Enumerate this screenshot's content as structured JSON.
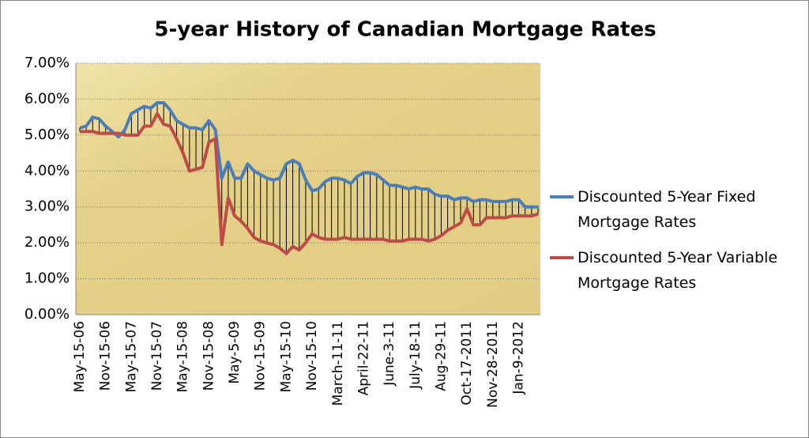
{
  "chart_data": {
    "type": "line",
    "title": "5-year History of Canadian Mortgage Rates",
    "categories": [
      "May-15-06",
      null,
      null,
      null,
      "Nov-15-06",
      null,
      null,
      null,
      "May-15-07",
      null,
      null,
      null,
      "Nov-15-07",
      null,
      null,
      null,
      "May-15-08",
      null,
      null,
      null,
      "Nov-15-08",
      null,
      null,
      null,
      "May-5-09",
      null,
      null,
      null,
      "Nov-15-09",
      null,
      null,
      null,
      "May-15-10",
      null,
      null,
      null,
      "Nov-15-10",
      null,
      null,
      null,
      "March-11-11",
      null,
      null,
      null,
      "April-22-11",
      null,
      null,
      null,
      "June-3-11",
      null,
      null,
      null,
      "July-18-11",
      null,
      null,
      null,
      "Aug-29-11",
      null,
      null,
      null,
      "Oct-17-2011",
      null,
      null,
      null,
      "Nov-28-2011",
      null,
      null,
      null,
      "Jan-9-2012",
      null,
      null,
      null
    ],
    "series": [
      {
        "name": "Discounted 5-Year Fixed Mortgage Rates",
        "color": "#4a7ebb",
        "values": [
          5.2,
          5.25,
          5.5,
          5.45,
          5.25,
          5.1,
          4.95,
          5.15,
          5.6,
          5.7,
          5.8,
          5.75,
          5.9,
          5.9,
          5.7,
          5.4,
          5.3,
          5.2,
          5.2,
          5.15,
          5.4,
          5.15,
          3.8,
          4.25,
          3.8,
          3.8,
          4.2,
          4.0,
          3.9,
          3.8,
          3.75,
          3.8,
          4.2,
          4.3,
          4.2,
          3.75,
          3.45,
          3.5,
          3.7,
          3.8,
          3.8,
          3.75,
          3.65,
          3.85,
          3.95,
          3.95,
          3.9,
          3.75,
          3.6,
          3.6,
          3.55,
          3.5,
          3.55,
          3.5,
          3.5,
          3.35,
          3.3,
          3.3,
          3.2,
          3.25,
          3.25,
          3.15,
          3.2,
          3.2,
          3.15,
          3.15,
          3.15,
          3.2,
          3.2,
          3.0,
          3.0,
          3.0
        ]
      },
      {
        "name": "Discounted 5-Year Variable Mortgage Rates",
        "color": "#be4b48",
        "values": [
          5.1,
          5.1,
          5.1,
          5.05,
          5.05,
          5.05,
          5.05,
          5.0,
          5.0,
          5.0,
          5.25,
          5.25,
          5.6,
          5.3,
          5.25,
          4.9,
          4.5,
          4.0,
          4.05,
          4.1,
          4.8,
          4.9,
          1.95,
          3.25,
          2.75,
          2.6,
          2.4,
          2.15,
          2.05,
          2.0,
          1.95,
          1.85,
          1.7,
          1.9,
          1.8,
          2.0,
          2.25,
          2.15,
          2.1,
          2.1,
          2.1,
          2.15,
          2.1,
          2.1,
          2.1,
          2.1,
          2.1,
          2.1,
          2.05,
          2.05,
          2.05,
          2.1,
          2.1,
          2.1,
          2.05,
          2.1,
          2.2,
          2.35,
          2.45,
          2.55,
          2.95,
          2.5,
          2.5,
          2.7,
          2.7,
          2.7,
          2.7,
          2.75,
          2.75,
          2.75,
          2.75,
          2.8
        ]
      }
    ],
    "ylim": [
      0,
      7
    ],
    "yticks": [
      {
        "value": 0,
        "label": "0.00%"
      },
      {
        "value": 1,
        "label": "1.00%"
      },
      {
        "value": 2,
        "label": "2.00%"
      },
      {
        "value": 3,
        "label": "3.00%"
      },
      {
        "value": 4,
        "label": "4.00%"
      },
      {
        "value": 5,
        "label": "5.00%"
      },
      {
        "value": 6,
        "label": "6.00%"
      },
      {
        "value": 7,
        "label": "7.00%"
      }
    ],
    "grid": true,
    "hi_lo_lines": true,
    "legend": "right",
    "title_color": "#1fa33c"
  }
}
